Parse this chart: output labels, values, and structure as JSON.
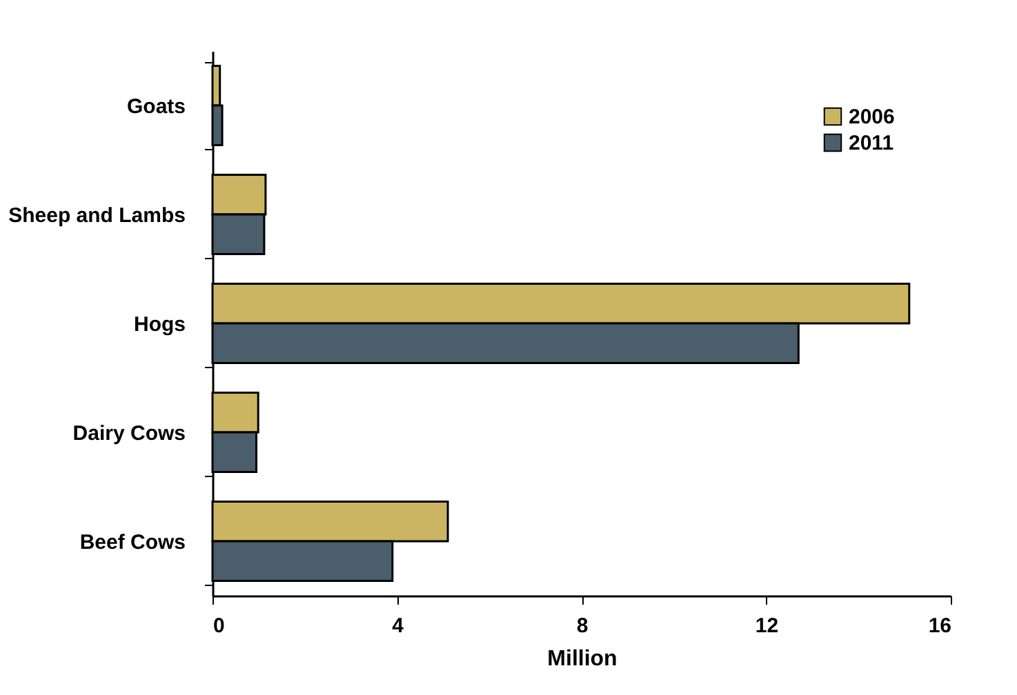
{
  "chart_data": {
    "type": "bar",
    "orientation": "horizontal",
    "xlabel": "Million",
    "categories": [
      "Goats",
      "Sheep and Lambs",
      "Hogs",
      "Dairy Cows",
      "Beef Cows"
    ],
    "series": [
      {
        "name": "2006",
        "color": "#cbb563",
        "values": [
          0.16,
          1.15,
          15.1,
          0.99,
          5.1
        ]
      },
      {
        "name": "2011",
        "color": "#4a5e6c",
        "values": [
          0.21,
          1.12,
          12.7,
          0.95,
          3.9
        ]
      }
    ],
    "xlim": [
      0,
      16
    ],
    "xticks": [
      0,
      4,
      8,
      12,
      16
    ],
    "grid": false,
    "legend": "top right"
  }
}
